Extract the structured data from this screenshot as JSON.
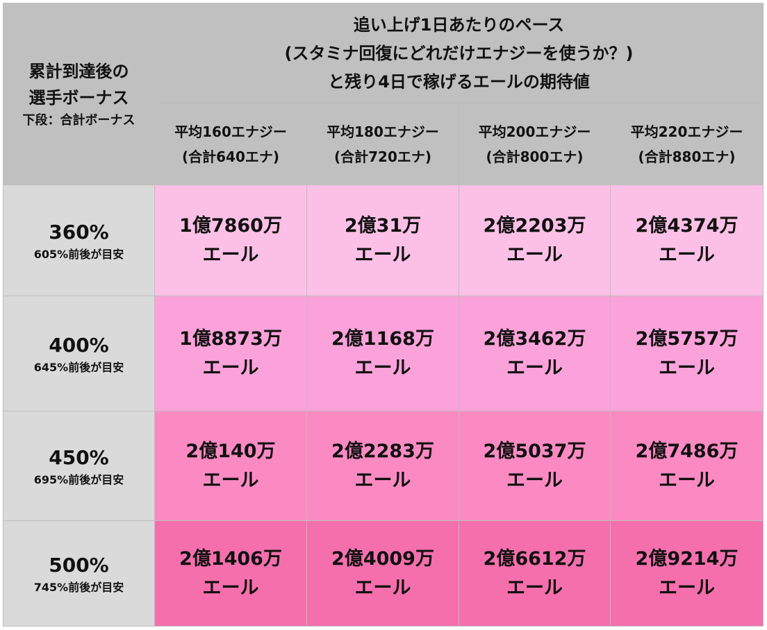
{
  "corner": {
    "label_lines": [
      "累計到達後の",
      "選手ボーナス"
    ],
    "note": "下段：合計ボーナス"
  },
  "header": {
    "lines": [
      "追い上げ1日あたりのペース",
      "(スタミナ回復にどれだけエナジーを使うか？)",
      "と残り4日で稼げるエールの期待値"
    ]
  },
  "columns": [
    {
      "line1": "平均160エナジー",
      "line2": "(合計640エナ)"
    },
    {
      "line1": "平均180エナジー",
      "line2": "(合計720エナ)"
    },
    {
      "line1": "平均200エナジー",
      "line2": "(合計800エナ)"
    },
    {
      "line1": "平均220エナジー",
      "line2": "(合計880エナ)"
    }
  ],
  "unit": "エール",
  "rows": [
    {
      "bonus": "360%",
      "guide": "605%前後が目安",
      "color": "#fcc0e6",
      "values": [
        "1億7860万",
        "2億31万",
        "2億2203万",
        "2億4374万"
      ]
    },
    {
      "bonus": "400%",
      "guide": "645%前後が目安",
      "color": "#fba2da",
      "values": [
        "1億8873万",
        "2億1168万",
        "2億3462万",
        "2億5757万"
      ]
    },
    {
      "bonus": "450%",
      "guide": "695%前後が目安",
      "color": "#fb8ac3",
      "values": [
        "2億140万",
        "2億2283万",
        "2億5037万",
        "2億7486万"
      ]
    },
    {
      "bonus": "500%",
      "guide": "745%前後が目安",
      "color": "#f56fad",
      "values": [
        "2億1406万",
        "2億4009万",
        "2億6612万",
        "2億9214万"
      ]
    }
  ],
  "colors": {
    "header_bg": "#c0c0c0",
    "row_header_bg": "#dadada",
    "border": "#bdbdbd"
  }
}
